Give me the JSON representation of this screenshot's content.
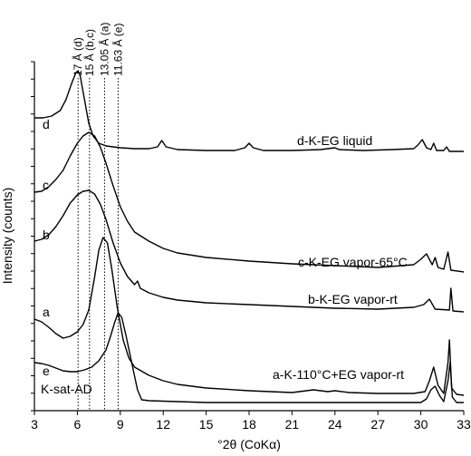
{
  "chart_data": {
    "type": "line",
    "title": "",
    "xlabel": "°2θ (CoKα)",
    "ylabel": "Intensity (counts)",
    "xlim": [
      3,
      33
    ],
    "x_ticks": [
      "3",
      "6",
      "9",
      "12",
      "15",
      "18",
      "21",
      "24",
      "27",
      "30",
      "33"
    ],
    "grid": false,
    "reference_lines": [
      {
        "label": "17 Å (d)",
        "x": 6.05
      },
      {
        "label": "15 Å (b,c)",
        "x": 6.85
      },
      {
        "label": "13.05 Å (a)",
        "x": 7.9
      },
      {
        "label": "11.63 Å (e)",
        "x": 8.85
      }
    ],
    "series": [
      {
        "name": "d-K-EG liquid",
        "letter": "d",
        "points": [
          [
            3,
            130
          ],
          [
            3.6,
            130
          ],
          [
            4.2,
            128
          ],
          [
            4.8,
            122
          ],
          [
            5.2,
            110
          ],
          [
            5.6,
            92
          ],
          [
            5.9,
            80
          ],
          [
            6.05,
            78
          ],
          [
            6.2,
            84
          ],
          [
            6.5,
            110
          ],
          [
            6.8,
            136
          ],
          [
            7.1,
            150
          ],
          [
            7.5,
            158
          ],
          [
            8,
            161
          ],
          [
            9,
            163
          ],
          [
            10,
            164
          ],
          [
            11,
            164
          ],
          [
            11.6,
            162
          ],
          [
            11.9,
            155
          ],
          [
            12.2,
            162
          ],
          [
            13,
            165
          ],
          [
            15,
            166
          ],
          [
            17,
            166
          ],
          [
            17.7,
            163
          ],
          [
            18,
            158
          ],
          [
            18.3,
            163
          ],
          [
            19,
            166
          ],
          [
            21,
            166
          ],
          [
            23,
            165
          ],
          [
            24,
            163
          ],
          [
            24.3,
            165
          ],
          [
            26,
            166
          ],
          [
            28,
            165
          ],
          [
            29.5,
            164
          ],
          [
            29.8,
            160
          ],
          [
            30.1,
            154
          ],
          [
            30.4,
            163
          ],
          [
            30.7,
            165
          ],
          [
            30.9,
            158
          ],
          [
            31.1,
            166
          ],
          [
            31.6,
            166
          ],
          [
            31.8,
            162
          ],
          [
            32,
            167
          ],
          [
            32.5,
            167
          ],
          [
            33,
            167
          ]
        ]
      },
      {
        "name": "c-K-EG vapor-65°C",
        "letter": "c",
        "points": [
          [
            3,
            212
          ],
          [
            3.5,
            211
          ],
          [
            4,
            206
          ],
          [
            4.5,
            198
          ],
          [
            5,
            188
          ],
          [
            5.5,
            172
          ],
          [
            6,
            158
          ],
          [
            6.4,
            150
          ],
          [
            6.8,
            146
          ],
          [
            7.2,
            150
          ],
          [
            7.6,
            162
          ],
          [
            8,
            180
          ],
          [
            8.5,
            205
          ],
          [
            9,
            228
          ],
          [
            9.5,
            244
          ],
          [
            10,
            256
          ],
          [
            11,
            266
          ],
          [
            12,
            274
          ],
          [
            13,
            279
          ],
          [
            15,
            284
          ],
          [
            18,
            288
          ],
          [
            21,
            291
          ],
          [
            24,
            293
          ],
          [
            27,
            295
          ],
          [
            29.5,
            292
          ],
          [
            30,
            286
          ],
          [
            30.4,
            280
          ],
          [
            30.8,
            292
          ],
          [
            31,
            284
          ],
          [
            31.2,
            295
          ],
          [
            31.6,
            297
          ],
          [
            31.9,
            278
          ],
          [
            32.1,
            298
          ],
          [
            33,
            300
          ]
        ]
      },
      {
        "name": "b-K-EG vapor-rt",
        "letter": "b",
        "points": [
          [
            3,
            266
          ],
          [
            3.5,
            264
          ],
          [
            4,
            259
          ],
          [
            4.5,
            250
          ],
          [
            5,
            238
          ],
          [
            5.5,
            224
          ],
          [
            6,
            215
          ],
          [
            6.4,
            211
          ],
          [
            6.8,
            210
          ],
          [
            7.2,
            214
          ],
          [
            7.6,
            225
          ],
          [
            8,
            242
          ],
          [
            8.5,
            268
          ],
          [
            9,
            290
          ],
          [
            9.5,
            305
          ],
          [
            10,
            314
          ],
          [
            10.2,
            310
          ],
          [
            10.4,
            318
          ],
          [
            11,
            323
          ],
          [
            12,
            328
          ],
          [
            13,
            331
          ],
          [
            15,
            334
          ],
          [
            18,
            336
          ],
          [
            21,
            338
          ],
          [
            24,
            340
          ],
          [
            27,
            341
          ],
          [
            29.5,
            339
          ],
          [
            30.2,
            336
          ],
          [
            30.6,
            330
          ],
          [
            31,
            341
          ],
          [
            32,
            342
          ],
          [
            32.1,
            318
          ],
          [
            32.25,
            343
          ],
          [
            33,
            344
          ]
        ]
      },
      {
        "name": "a-K-110°C+EG vapor-rt",
        "letter": "a",
        "points": [
          [
            3,
            352
          ],
          [
            3.5,
            355
          ],
          [
            4,
            361
          ],
          [
            4.5,
            368
          ],
          [
            5,
            373
          ],
          [
            5.5,
            371
          ],
          [
            6,
            366
          ],
          [
            6.4,
            358
          ],
          [
            6.8,
            342
          ],
          [
            7.2,
            306
          ],
          [
            7.5,
            276
          ],
          [
            7.8,
            262
          ],
          [
            8.1,
            268
          ],
          [
            8.4,
            296
          ],
          [
            8.8,
            340
          ],
          [
            9.2,
            375
          ],
          [
            9.6,
            395
          ],
          [
            10,
            405
          ],
          [
            11,
            414
          ],
          [
            12,
            420
          ],
          [
            13,
            424
          ],
          [
            15,
            428
          ],
          [
            18,
            431
          ],
          [
            21,
            433
          ],
          [
            22.5,
            430
          ],
          [
            23.5,
            432
          ],
          [
            24,
            431
          ],
          [
            25,
            433
          ],
          [
            27,
            434
          ],
          [
            29.5,
            434
          ],
          [
            30.3,
            432
          ],
          [
            30.6,
            420
          ],
          [
            30.9,
            405
          ],
          [
            31.2,
            425
          ],
          [
            31.6,
            434
          ],
          [
            31.9,
            400
          ],
          [
            32,
            375
          ],
          [
            32.15,
            428
          ],
          [
            32.5,
            435
          ],
          [
            33,
            436
          ]
        ]
      },
      {
        "name": "K-sat-AD",
        "letter": "e",
        "points": [
          [
            3,
            400
          ],
          [
            3.5,
            401
          ],
          [
            4,
            403
          ],
          [
            4.5,
            406
          ],
          [
            5,
            409
          ],
          [
            5.5,
            410
          ],
          [
            6,
            410
          ],
          [
            6.5,
            408
          ],
          [
            7,
            405
          ],
          [
            7.5,
            398
          ],
          [
            8,
            386
          ],
          [
            8.3,
            372
          ],
          [
            8.6,
            356
          ],
          [
            8.85,
            345
          ],
          [
            9.1,
            350
          ],
          [
            9.4,
            370
          ],
          [
            9.8,
            400
          ],
          [
            10.2,
            430
          ],
          [
            10.5,
            441
          ],
          [
            11,
            442
          ],
          [
            13,
            443
          ],
          [
            15,
            444
          ],
          [
            18,
            444
          ],
          [
            21,
            444
          ],
          [
            24,
            444
          ],
          [
            27,
            444
          ],
          [
            30,
            444
          ],
          [
            30.4,
            440
          ],
          [
            30.7,
            430
          ],
          [
            31,
            426
          ],
          [
            31.3,
            436
          ],
          [
            31.6,
            443
          ],
          [
            31.9,
            420
          ],
          [
            32.05,
            400
          ],
          [
            32.2,
            438
          ],
          [
            32.5,
            444
          ],
          [
            33,
            444
          ]
        ]
      }
    ],
    "annotations": {
      "d_label": "d-K-EG liquid",
      "c_label": "c-K-EG vapor-65°C",
      "b_label": "b-K-EG vapor-rt",
      "a_label": "a-K-110°C+EG vapor-rt",
      "e_label": "K-sat-AD"
    },
    "letters": [
      "d",
      "c",
      "b",
      "a",
      "e"
    ]
  }
}
